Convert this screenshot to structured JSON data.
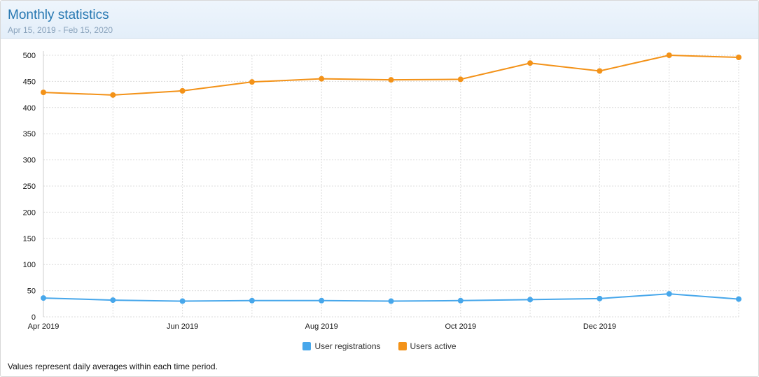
{
  "header": {
    "title": "Monthly statistics",
    "subtitle": "Apr 15, 2019 - Feb 15, 2020"
  },
  "footnote": "Values represent daily averages within each time period.",
  "colors": {
    "registrations": "#47a7eb",
    "active": "#f39218",
    "grid": "#dcdcdc",
    "axis_text": "#141414"
  },
  "chart_data": {
    "type": "line",
    "title": "",
    "xlabel": "",
    "ylabel": "",
    "x": [
      "Apr 2019",
      "May 2019",
      "Jun 2019",
      "Jul 2019",
      "Aug 2019",
      "Sep 2019",
      "Oct 2019",
      "Nov 2019",
      "Dec 2019",
      "Jan 2020",
      "Feb 2020"
    ],
    "x_tick_labels": [
      "Apr 2019",
      "Jun 2019",
      "Aug 2019",
      "Oct 2019",
      "Dec 2019"
    ],
    "ylim": [
      0,
      500
    ],
    "yticks": [
      0,
      50,
      100,
      150,
      200,
      250,
      300,
      350,
      400,
      450,
      500
    ],
    "grid": true,
    "legend_position": "bottom",
    "series": [
      {
        "name": "User registrations",
        "values": [
          36,
          32,
          30,
          31,
          31,
          30,
          31,
          33,
          35,
          44,
          34
        ]
      },
      {
        "name": "Users active",
        "values": [
          429,
          424,
          432,
          449,
          455,
          453,
          454,
          485,
          470,
          500,
          496
        ]
      }
    ]
  }
}
